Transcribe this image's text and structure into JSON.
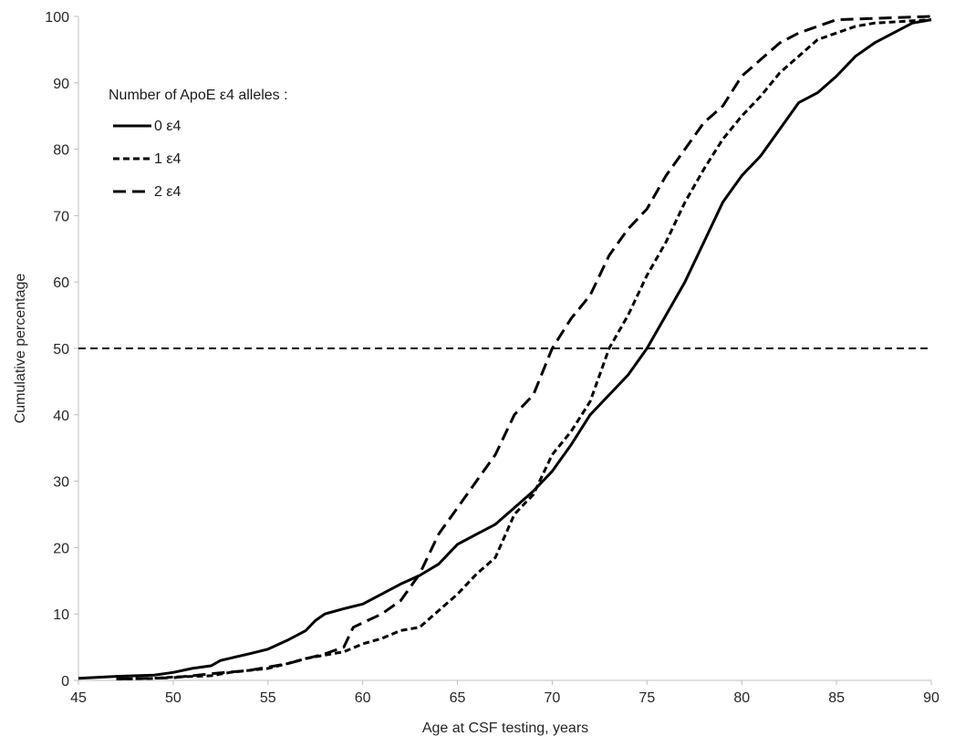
{
  "chart_data": {
    "type": "line",
    "title": "",
    "xlabel": "Age at CSF testing, years",
    "ylabel": "Cumulative percentage",
    "xlim": [
      45,
      90
    ],
    "ylim": [
      0,
      100
    ],
    "xticks": [
      "45",
      "50",
      "55",
      "60",
      "65",
      "70",
      "75",
      "80",
      "85",
      "90"
    ],
    "yticks": [
      "0",
      "10",
      "20",
      "30",
      "40",
      "50",
      "60",
      "70",
      "80",
      "90",
      "100"
    ],
    "grid": false,
    "legend": {
      "title": "Number of ApoE ε4 alleles :",
      "placement": "top-left"
    },
    "reference_line": {
      "y": 50,
      "style": "dashed"
    },
    "series": [
      {
        "name": "0 ε4",
        "dash": "solid",
        "points": [
          [
            45,
            0.3
          ],
          [
            47,
            0.6
          ],
          [
            49,
            0.8
          ],
          [
            50,
            1.2
          ],
          [
            51,
            1.8
          ],
          [
            52,
            2.2
          ],
          [
            52.5,
            3.0
          ],
          [
            54,
            4.0
          ],
          [
            55,
            4.7
          ],
          [
            56,
            6.0
          ],
          [
            57,
            7.5
          ],
          [
            57.5,
            9.0
          ],
          [
            58,
            10.0
          ],
          [
            59,
            10.8
          ],
          [
            60,
            11.5
          ],
          [
            61,
            13.0
          ],
          [
            62,
            14.5
          ],
          [
            63,
            15.8
          ],
          [
            64,
            17.5
          ],
          [
            65,
            20.5
          ],
          [
            66,
            22.0
          ],
          [
            67,
            23.5
          ],
          [
            68,
            26.0
          ],
          [
            69,
            28.5
          ],
          [
            70,
            31.5
          ],
          [
            71,
            35.5
          ],
          [
            72,
            40.0
          ],
          [
            73,
            43.0
          ],
          [
            74,
            46.0
          ],
          [
            75,
            50.0
          ],
          [
            76,
            55.0
          ],
          [
            77,
            60.0
          ],
          [
            78,
            66.0
          ],
          [
            79,
            72.0
          ],
          [
            80,
            76.0
          ],
          [
            81,
            79.0
          ],
          [
            82,
            83.0
          ],
          [
            83,
            87.0
          ],
          [
            84,
            88.5
          ],
          [
            85,
            91.0
          ],
          [
            86,
            94.0
          ],
          [
            87,
            96.0
          ],
          [
            88,
            97.5
          ],
          [
            89,
            99.0
          ],
          [
            90,
            99.5
          ]
        ]
      },
      {
        "name": "1 ε4",
        "dash": "short",
        "points": [
          [
            47,
            0.2
          ],
          [
            49,
            0.3
          ],
          [
            50,
            0.5
          ],
          [
            52,
            0.7
          ],
          [
            53,
            1.2
          ],
          [
            55,
            1.8
          ],
          [
            56,
            2.5
          ],
          [
            57,
            3.3
          ],
          [
            58,
            3.8
          ],
          [
            59,
            4.3
          ],
          [
            60,
            5.5
          ],
          [
            61,
            6.3
          ],
          [
            62,
            7.5
          ],
          [
            63,
            8.0
          ],
          [
            64,
            10.5
          ],
          [
            65,
            13.0
          ],
          [
            66,
            16.0
          ],
          [
            67,
            18.5
          ],
          [
            68,
            25.0
          ],
          [
            69,
            28.0
          ],
          [
            70,
            34.0
          ],
          [
            71,
            37.5
          ],
          [
            72,
            42.0
          ],
          [
            73,
            50.0
          ],
          [
            74,
            55.0
          ],
          [
            75,
            61.0
          ],
          [
            76,
            66.0
          ],
          [
            77,
            72.0
          ],
          [
            78,
            77.0
          ],
          [
            79,
            81.5
          ],
          [
            80,
            85.0
          ],
          [
            81,
            88.0
          ],
          [
            82,
            91.5
          ],
          [
            83,
            94.0
          ],
          [
            84,
            96.5
          ],
          [
            85,
            97.5
          ],
          [
            86,
            98.5
          ],
          [
            87,
            99.0
          ],
          [
            90,
            99.5
          ]
        ]
      },
      {
        "name": "2 ε4",
        "dash": "long",
        "points": [
          [
            47,
            0.2
          ],
          [
            50,
            0.4
          ],
          [
            52,
            1.0
          ],
          [
            54,
            1.5
          ],
          [
            56,
            2.5
          ],
          [
            58,
            4.0
          ],
          [
            59,
            5.0
          ],
          [
            59.5,
            8.0
          ],
          [
            61,
            10.0
          ],
          [
            62,
            12.0
          ],
          [
            63,
            16.0
          ],
          [
            64,
            22.0
          ],
          [
            65,
            26.0
          ],
          [
            66,
            30.0
          ],
          [
            67,
            34.0
          ],
          [
            68,
            40.0
          ],
          [
            69,
            43.0
          ],
          [
            70,
            50.0
          ],
          [
            71,
            54.5
          ],
          [
            72,
            58.0
          ],
          [
            73,
            64.0
          ],
          [
            74,
            68.0
          ],
          [
            75,
            71.0
          ],
          [
            76,
            76.0
          ],
          [
            77,
            80.0
          ],
          [
            78,
            84.0
          ],
          [
            79,
            86.5
          ],
          [
            80,
            91.0
          ],
          [
            81,
            93.5
          ],
          [
            82,
            96.0
          ],
          [
            83,
            97.5
          ],
          [
            84,
            98.5
          ],
          [
            85,
            99.5
          ],
          [
            90,
            100
          ]
        ]
      }
    ]
  }
}
